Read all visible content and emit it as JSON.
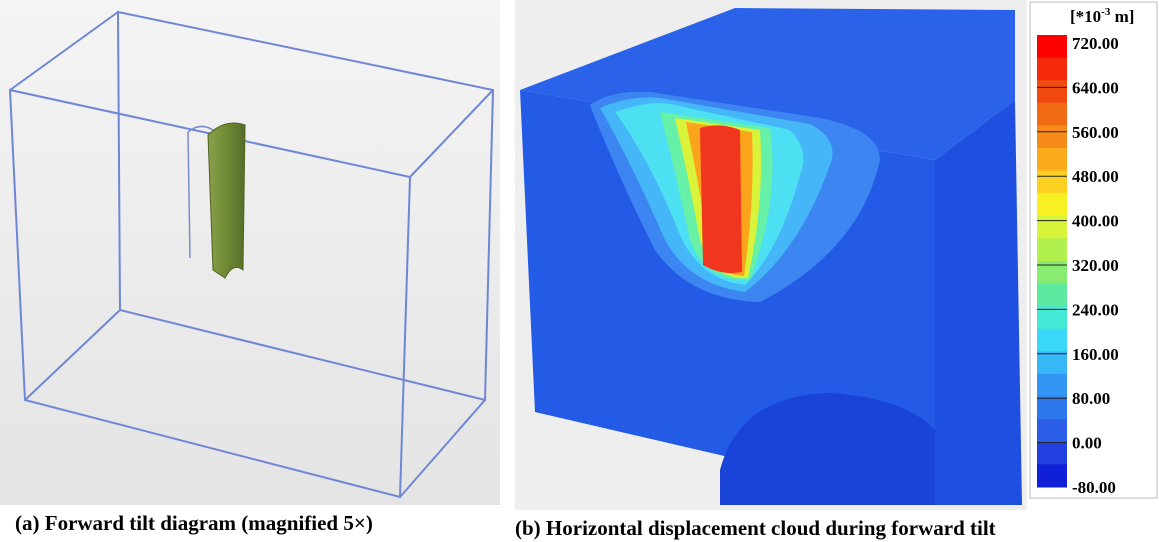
{
  "panel_a": {
    "caption": "(a) Forward tilt diagram (magnified 5×)"
  },
  "panel_b": {
    "caption": "(b) Horizontal displacement cloud during forward tilt",
    "colorbar": {
      "unit_prefix": "[*10",
      "unit_exponent": "-3",
      "unit_suffix": " m]",
      "labels": [
        "720.00",
        "640.00",
        "560.00",
        "480.00",
        "400.00",
        "320.00",
        "240.00",
        "160.00",
        "80.00",
        "0.00",
        "-80.00"
      ]
    }
  }
}
